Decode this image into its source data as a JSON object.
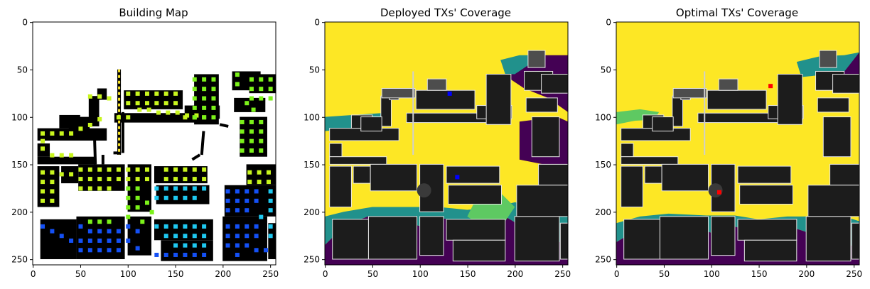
{
  "chart_data": [
    {
      "type": "heatmap",
      "title": "Building Map",
      "xlim": [
        0,
        255
      ],
      "ylim": [
        255,
        0
      ],
      "x_ticks": [
        0,
        50,
        100,
        150,
        200,
        250
      ],
      "y_ticks": [
        0,
        50,
        100,
        150,
        200,
        250
      ],
      "colors": {
        "background": "#ffffff",
        "building": "#000000",
        "pillar": "#fde725"
      },
      "marker_groups": [
        {
          "color": "#c8f51e",
          "points": [
            [
              10,
              117
            ],
            [
              20,
              117
            ],
            [
              30,
              117
            ],
            [
              40,
              117
            ],
            [
              50,
              112
            ],
            [
              60,
              108
            ],
            [
              70,
              102
            ],
            [
              10,
              125
            ],
            [
              10,
              133
            ],
            [
              20,
              140
            ],
            [
              30,
              140
            ],
            [
              40,
              140
            ],
            [
              90,
              100
            ],
            [
              100,
              100
            ],
            [
              112,
              92
            ],
            [
              122,
              92
            ],
            [
              132,
              95
            ],
            [
              142,
              95
            ],
            [
              152,
              95
            ],
            [
              162,
              98
            ],
            [
              172,
              98
            ],
            [
              60,
              78
            ],
            [
              70,
              78
            ],
            [
              80,
              80
            ],
            [
              100,
              75
            ],
            [
              110,
              75
            ],
            [
              120,
              75
            ],
            [
              130,
              75
            ],
            [
              140,
              75
            ],
            [
              150,
              75
            ],
            [
              100,
              85
            ],
            [
              110,
              85
            ],
            [
              120,
              85
            ],
            [
              130,
              85
            ],
            [
              140,
              85
            ],
            [
              150,
              85
            ],
            [
              160,
              100
            ],
            [
              170,
              100
            ],
            [
              180,
              100
            ],
            [
              10,
              158
            ],
            [
              20,
              158
            ],
            [
              10,
              168
            ],
            [
              20,
              168
            ],
            [
              30,
              160
            ],
            [
              40,
              160
            ],
            [
              10,
              178
            ],
            [
              20,
              178
            ],
            [
              10,
              188
            ],
            [
              20,
              188
            ],
            [
              50,
              155
            ],
            [
              60,
              155
            ],
            [
              70,
              155
            ],
            [
              80,
              155
            ],
            [
              90,
              155
            ],
            [
              50,
              165
            ],
            [
              60,
              165
            ],
            [
              70,
              165
            ],
            [
              80,
              165
            ],
            [
              90,
              165
            ],
            [
              50,
              175
            ],
            [
              60,
              175
            ],
            [
              70,
              175
            ],
            [
              80,
              175
            ],
            [
              100,
              155
            ],
            [
              110,
              155
            ],
            [
              120,
              155
            ],
            [
              100,
              165
            ],
            [
              110,
              165
            ],
            [
              120,
              165
            ],
            [
              140,
              155
            ],
            [
              150,
              155
            ],
            [
              160,
              155
            ],
            [
              170,
              155
            ],
            [
              180,
              155
            ],
            [
              140,
              165
            ],
            [
              150,
              165
            ],
            [
              160,
              165
            ],
            [
              170,
              165
            ],
            [
              180,
              165
            ],
            [
              228,
              158
            ],
            [
              238,
              158
            ],
            [
              248,
              158
            ],
            [
              228,
              168
            ],
            [
              238,
              168
            ],
            [
              248,
              168
            ]
          ]
        },
        {
          "color": "#7cf21a",
          "points": [
            [
              170,
              60
            ],
            [
              180,
              60
            ],
            [
              190,
              60
            ],
            [
              170,
              70
            ],
            [
              180,
              70
            ],
            [
              190,
              70
            ],
            [
              170,
              80
            ],
            [
              180,
              80
            ],
            [
              190,
              80
            ],
            [
              170,
              90
            ],
            [
              180,
              90
            ],
            [
              190,
              90
            ],
            [
              170,
              100
            ],
            [
              180,
              100
            ],
            [
              190,
              100
            ],
            [
              230,
              60
            ],
            [
              240,
              60
            ],
            [
              250,
              60
            ],
            [
              230,
              70
            ],
            [
              240,
              70
            ],
            [
              250,
              70
            ],
            [
              230,
              80
            ],
            [
              240,
              80
            ],
            [
              250,
              80
            ],
            [
              220,
              105
            ],
            [
              230,
              105
            ],
            [
              240,
              105
            ],
            [
              220,
              115
            ],
            [
              230,
              115
            ],
            [
              240,
              115
            ],
            [
              220,
              125
            ],
            [
              230,
              125
            ],
            [
              240,
              125
            ],
            [
              220,
              135
            ],
            [
              230,
              135
            ],
            [
              240,
              135
            ],
            [
              215,
              55
            ],
            [
              215,
              65
            ],
            [
              225,
              85
            ],
            [
              232,
              92
            ],
            [
              100,
              175
            ],
            [
              110,
              175
            ],
            [
              100,
              185
            ],
            [
              110,
              185
            ],
            [
              100,
              195
            ],
            [
              110,
              195
            ],
            [
              120,
              190
            ],
            [
              60,
              210
            ],
            [
              70,
              210
            ],
            [
              80,
              210
            ],
            [
              100,
              205
            ],
            [
              115,
              210
            ],
            [
              125,
              200
            ]
          ]
        },
        {
          "color": "#1ec8f0",
          "points": [
            [
              130,
              175
            ],
            [
              140,
              175
            ],
            [
              150,
              175
            ],
            [
              160,
              175
            ],
            [
              170,
              175
            ],
            [
              180,
              175
            ],
            [
              130,
              185
            ],
            [
              140,
              185
            ],
            [
              150,
              185
            ],
            [
              160,
              185
            ],
            [
              170,
              185
            ],
            [
              130,
              215
            ],
            [
              140,
              215
            ],
            [
              150,
              215
            ],
            [
              160,
              215
            ],
            [
              170,
              215
            ],
            [
              180,
              215
            ],
            [
              140,
              225
            ],
            [
              150,
              225
            ],
            [
              160,
              225
            ],
            [
              170,
              225
            ],
            [
              180,
              225
            ],
            [
              150,
              235
            ],
            [
              160,
              235
            ],
            [
              170,
              235
            ],
            [
              180,
              235
            ],
            [
              250,
              178
            ],
            [
              250,
              188
            ],
            [
              250,
              198
            ],
            [
              240,
              205
            ],
            [
              250,
              215
            ],
            [
              250,
              225
            ]
          ]
        },
        {
          "color": "#1450f5",
          "points": [
            [
              205,
              178
            ],
            [
              215,
              178
            ],
            [
              225,
              178
            ],
            [
              235,
              178
            ],
            [
              205,
              188
            ],
            [
              215,
              188
            ],
            [
              225,
              188
            ],
            [
              235,
              188
            ],
            [
              205,
              198
            ],
            [
              215,
              198
            ],
            [
              225,
              198
            ],
            [
              10,
              215
            ],
            [
              20,
              220
            ],
            [
              30,
              225
            ],
            [
              40,
              230
            ],
            [
              50,
              215
            ],
            [
              60,
              220
            ],
            [
              70,
              220
            ],
            [
              80,
              220
            ],
            [
              90,
              220
            ],
            [
              50,
              230
            ],
            [
              60,
              230
            ],
            [
              70,
              230
            ],
            [
              80,
              230
            ],
            [
              90,
              230
            ],
            [
              50,
              240
            ],
            [
              60,
              240
            ],
            [
              70,
              240
            ],
            [
              80,
              240
            ],
            [
              90,
              240
            ],
            [
              100,
              215
            ],
            [
              110,
              220
            ],
            [
              100,
              230
            ],
            [
              110,
              238
            ],
            [
              130,
              245
            ],
            [
              140,
              245
            ],
            [
              150,
              245
            ],
            [
              160,
              245
            ],
            [
              170,
              245
            ],
            [
              180,
              245
            ],
            [
              205,
              215
            ],
            [
              215,
              215
            ],
            [
              225,
              215
            ],
            [
              235,
              215
            ],
            [
              205,
              225
            ],
            [
              215,
              225
            ],
            [
              225,
              225
            ],
            [
              235,
              225
            ],
            [
              205,
              235
            ],
            [
              215,
              235
            ],
            [
              225,
              235
            ],
            [
              235,
              240
            ],
            [
              215,
              245
            ],
            [
              245,
              240
            ]
          ]
        }
      ]
    },
    {
      "type": "heatmap",
      "title": "Deployed TXs' Coverage",
      "xlim": [
        0,
        255
      ],
      "ylim": [
        255,
        0
      ],
      "x_ticks": [
        0,
        50,
        100,
        150,
        200,
        250
      ],
      "y_ticks": [
        0,
        50,
        100,
        150,
        200,
        250
      ],
      "colormap": [
        "#440154",
        "#21918c",
        "#5ec962",
        "#fde725"
      ],
      "colors": {
        "building": "#1c1c1c",
        "outline": "#e6e6e6"
      },
      "transmitters": [
        {
          "x": 131,
          "y": 75,
          "color": "#0000ff"
        },
        {
          "x": 139,
          "y": 163,
          "color": "#0000ff"
        }
      ]
    },
    {
      "type": "heatmap",
      "title": "Optimal TXs' Coverage",
      "xlim": [
        0,
        255
      ],
      "ylim": [
        255,
        0
      ],
      "x_ticks": [
        0,
        50,
        100,
        150,
        200,
        250
      ],
      "y_ticks": [
        0,
        50,
        100,
        150,
        200,
        250
      ],
      "colormap": [
        "#440154",
        "#21918c",
        "#5ec962",
        "#fde725"
      ],
      "colors": {
        "building": "#1c1c1c",
        "outline": "#e6e6e6"
      },
      "transmitters": [
        {
          "x": 162,
          "y": 67,
          "color": "#ff0000"
        },
        {
          "x": 108,
          "y": 179,
          "color": "#ff0000"
        }
      ]
    }
  ]
}
